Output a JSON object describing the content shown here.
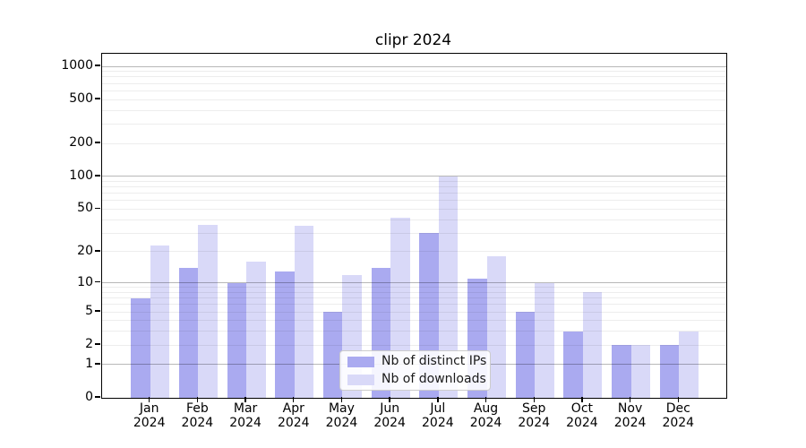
{
  "title": "clipr 2024",
  "chart_data": {
    "type": "bar",
    "title": "clipr 2024",
    "categories": [
      "Jan",
      "Feb",
      "Mar",
      "Apr",
      "May",
      "Jun",
      "Jul",
      "Aug",
      "Sep",
      "Oct",
      "Nov",
      "Dec"
    ],
    "category_year": "2024",
    "series": [
      {
        "name": "Nb of distinct IPs",
        "color": "#aaaaf0",
        "values": [
          7,
          14,
          10,
          13,
          5,
          14,
          30,
          11,
          5,
          3,
          2,
          2
        ]
      },
      {
        "name": "Nb of downloads",
        "color": "#d9d9f8",
        "values": [
          23,
          36,
          16,
          35,
          12,
          42,
          100,
          18,
          10,
          8,
          2,
          3
        ]
      }
    ],
    "yscale": "log1p",
    "yticks": [
      0,
      1,
      2,
      5,
      10,
      20,
      50,
      100,
      200,
      500,
      1000
    ],
    "major_grid_values": [
      1,
      10,
      100,
      1000
    ],
    "ylim": [
      0,
      1300
    ],
    "grid": true,
    "legend_position": "lower center"
  },
  "colors": {
    "background": "#ffffff",
    "axis": "#000000",
    "bar_distinct_ips": "#aaaaf0",
    "bar_downloads": "#d9d9f8",
    "legend_border": "#cccccc"
  }
}
